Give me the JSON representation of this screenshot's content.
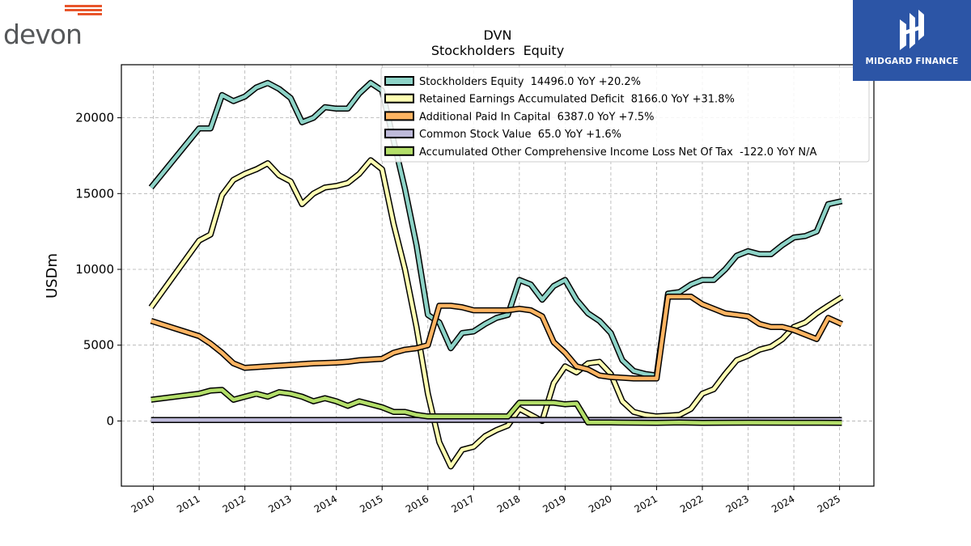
{
  "brands": {
    "left": "devon",
    "right": "MIDGARD FINANCE"
  },
  "colors": {
    "equity": "#8dd3c7",
    "retained": "#ffffb3",
    "apic": "#fdb462",
    "common": "#bebada",
    "aoci": "#b3de69",
    "devon_accent": "#e8552b",
    "midgard_bg": "#2c55a6"
  },
  "chart_data": {
    "type": "line",
    "title": "DVN",
    "subtitle": "Stockholders  Equity",
    "ylabel": "USDm",
    "xlabel": "",
    "xlim": [
      2009.3,
      2025.75
    ],
    "ylim": [
      -4300,
      23500
    ],
    "xticks": [
      "2010",
      "2011",
      "2012",
      "2013",
      "2014",
      "2015",
      "2016",
      "2017",
      "2018",
      "2019",
      "2020",
      "2021",
      "2022",
      "2023",
      "2024",
      "2025"
    ],
    "yticks": [
      "0",
      "5000",
      "10000",
      "15000",
      "20000"
    ],
    "grid": true,
    "legend_position": "top-right",
    "series": [
      {
        "key": "equity",
        "name": "Stockholders Equity  14496.0 YoY +20.2%",
        "color_key": "equity",
        "points": [
          [
            2009.95,
            15400
          ],
          [
            2011.0,
            19300
          ],
          [
            2011.25,
            19300
          ],
          [
            2011.5,
            21500
          ],
          [
            2011.75,
            21100
          ],
          [
            2012.0,
            21400
          ],
          [
            2012.25,
            22000
          ],
          [
            2012.5,
            22300
          ],
          [
            2012.75,
            21900
          ],
          [
            2013.0,
            21300
          ],
          [
            2013.25,
            19700
          ],
          [
            2013.5,
            20000
          ],
          [
            2013.75,
            20700
          ],
          [
            2014.0,
            20600
          ],
          [
            2014.25,
            20600
          ],
          [
            2014.5,
            21600
          ],
          [
            2014.75,
            22300
          ],
          [
            2015.0,
            21800
          ],
          [
            2015.25,
            18500
          ],
          [
            2015.5,
            15300
          ],
          [
            2015.75,
            11600
          ],
          [
            2016.0,
            7000
          ],
          [
            2016.25,
            6500
          ],
          [
            2016.5,
            4800
          ],
          [
            2016.75,
            5800
          ],
          [
            2017.0,
            5900
          ],
          [
            2017.25,
            6400
          ],
          [
            2017.5,
            6800
          ],
          [
            2017.75,
            7000
          ],
          [
            2018.0,
            9300
          ],
          [
            2018.25,
            9000
          ],
          [
            2018.5,
            8000
          ],
          [
            2018.75,
            8900
          ],
          [
            2019.0,
            9300
          ],
          [
            2019.25,
            8000
          ],
          [
            2019.5,
            7100
          ],
          [
            2019.75,
            6600
          ],
          [
            2020.0,
            5800
          ],
          [
            2020.25,
            4000
          ],
          [
            2020.5,
            3300
          ],
          [
            2020.75,
            3100
          ],
          [
            2021.0,
            3000
          ],
          [
            2021.25,
            8400
          ],
          [
            2021.5,
            8500
          ],
          [
            2021.75,
            9000
          ],
          [
            2022.0,
            9300
          ],
          [
            2022.25,
            9300
          ],
          [
            2022.5,
            10000
          ],
          [
            2022.75,
            10900
          ],
          [
            2023.0,
            11200
          ],
          [
            2023.25,
            11000
          ],
          [
            2023.5,
            11000
          ],
          [
            2023.75,
            11600
          ],
          [
            2024.0,
            12100
          ],
          [
            2024.25,
            12200
          ],
          [
            2024.5,
            12500
          ],
          [
            2024.75,
            14300
          ],
          [
            2025.05,
            14496
          ]
        ]
      },
      {
        "key": "retained",
        "name": "Retained Earnings Accumulated Deficit  8166.0 YoY +31.8%",
        "color_key": "retained",
        "points": [
          [
            2009.95,
            7500
          ],
          [
            2011.0,
            11900
          ],
          [
            2011.25,
            12300
          ],
          [
            2011.5,
            14900
          ],
          [
            2011.75,
            15900
          ],
          [
            2012.0,
            16300
          ],
          [
            2012.25,
            16600
          ],
          [
            2012.5,
            17000
          ],
          [
            2012.75,
            16200
          ],
          [
            2013.0,
            15800
          ],
          [
            2013.25,
            14300
          ],
          [
            2013.5,
            15000
          ],
          [
            2013.75,
            15400
          ],
          [
            2014.0,
            15500
          ],
          [
            2014.25,
            15700
          ],
          [
            2014.5,
            16300
          ],
          [
            2014.75,
            17200
          ],
          [
            2015.0,
            16600
          ],
          [
            2015.25,
            13000
          ],
          [
            2015.5,
            10000
          ],
          [
            2015.75,
            6200
          ],
          [
            2016.0,
            1800
          ],
          [
            2016.25,
            -1400
          ],
          [
            2016.5,
            -3000
          ],
          [
            2016.75,
            -1900
          ],
          [
            2017.0,
            -1700
          ],
          [
            2017.25,
            -1000
          ],
          [
            2017.5,
            -600
          ],
          [
            2017.75,
            -300
          ],
          [
            2018.0,
            800
          ],
          [
            2018.25,
            400
          ],
          [
            2018.5,
            0
          ],
          [
            2018.75,
            2500
          ],
          [
            2019.0,
            3600
          ],
          [
            2019.25,
            3200
          ],
          [
            2019.5,
            3800
          ],
          [
            2019.75,
            3900
          ],
          [
            2020.0,
            3100
          ],
          [
            2020.25,
            1300
          ],
          [
            2020.5,
            600
          ],
          [
            2020.75,
            400
          ],
          [
            2021.0,
            300
          ],
          [
            2021.25,
            350
          ],
          [
            2021.5,
            400
          ],
          [
            2021.75,
            800
          ],
          [
            2022.0,
            1800
          ],
          [
            2022.25,
            2100
          ],
          [
            2022.5,
            3100
          ],
          [
            2022.75,
            4000
          ],
          [
            2023.0,
            4300
          ],
          [
            2023.25,
            4700
          ],
          [
            2023.5,
            4900
          ],
          [
            2023.75,
            5400
          ],
          [
            2024.0,
            6200
          ],
          [
            2024.25,
            6500
          ],
          [
            2024.5,
            7100
          ],
          [
            2024.75,
            7600
          ],
          [
            2025.05,
            8166
          ]
        ]
      },
      {
        "key": "apic",
        "name": "Additional Paid In Capital  6387.0 YoY +7.5%",
        "color_key": "apic",
        "points": [
          [
            2009.95,
            6600
          ],
          [
            2011.0,
            5600
          ],
          [
            2011.25,
            5100
          ],
          [
            2011.5,
            4500
          ],
          [
            2011.75,
            3800
          ],
          [
            2012.0,
            3500
          ],
          [
            2012.5,
            3600
          ],
          [
            2013.0,
            3700
          ],
          [
            2013.5,
            3800
          ],
          [
            2014.0,
            3850
          ],
          [
            2014.25,
            3900
          ],
          [
            2014.5,
            4000
          ],
          [
            2015.0,
            4100
          ],
          [
            2015.25,
            4500
          ],
          [
            2015.5,
            4700
          ],
          [
            2015.75,
            4800
          ],
          [
            2016.0,
            5000
          ],
          [
            2016.25,
            7600
          ],
          [
            2016.5,
            7600
          ],
          [
            2016.75,
            7500
          ],
          [
            2017.0,
            7300
          ],
          [
            2017.5,
            7300
          ],
          [
            2017.75,
            7300
          ],
          [
            2018.0,
            7400
          ],
          [
            2018.25,
            7300
          ],
          [
            2018.5,
            6900
          ],
          [
            2018.75,
            5200
          ],
          [
            2019.0,
            4500
          ],
          [
            2019.25,
            3600
          ],
          [
            2019.5,
            3400
          ],
          [
            2019.75,
            3000
          ],
          [
            2020.0,
            2900
          ],
          [
            2020.5,
            2800
          ],
          [
            2021.0,
            2800
          ],
          [
            2021.25,
            8200
          ],
          [
            2021.5,
            8200
          ],
          [
            2021.75,
            8200
          ],
          [
            2022.0,
            7700
          ],
          [
            2022.25,
            7400
          ],
          [
            2022.5,
            7100
          ],
          [
            2022.75,
            7000
          ],
          [
            2023.0,
            6900
          ],
          [
            2023.25,
            6400
          ],
          [
            2023.5,
            6200
          ],
          [
            2023.75,
            6200
          ],
          [
            2024.0,
            6000
          ],
          [
            2024.25,
            5700
          ],
          [
            2024.5,
            5400
          ],
          [
            2024.75,
            6800
          ],
          [
            2025.05,
            6387
          ]
        ]
      },
      {
        "key": "common",
        "name": "Common Stock Value  65.0 YoY +1.6%",
        "color_key": "common",
        "points": [
          [
            2009.95,
            60
          ],
          [
            2012.0,
            60
          ],
          [
            2016.0,
            70
          ],
          [
            2020.0,
            70
          ],
          [
            2022.0,
            65
          ],
          [
            2025.05,
            65
          ]
        ]
      },
      {
        "key": "aoci",
        "name": "Accumulated Other Comprehensive Income Loss Net Of Tax  -122.0 YoY N/A",
        "color_key": "aoci",
        "points": [
          [
            2009.95,
            1400
          ],
          [
            2011.0,
            1800
          ],
          [
            2011.25,
            2000
          ],
          [
            2011.5,
            2050
          ],
          [
            2011.75,
            1400
          ],
          [
            2012.0,
            1600
          ],
          [
            2012.25,
            1800
          ],
          [
            2012.5,
            1600
          ],
          [
            2012.75,
            1900
          ],
          [
            2013.0,
            1800
          ],
          [
            2013.25,
            1600
          ],
          [
            2013.5,
            1300
          ],
          [
            2013.75,
            1500
          ],
          [
            2014.0,
            1300
          ],
          [
            2014.25,
            1000
          ],
          [
            2014.5,
            1300
          ],
          [
            2014.75,
            1100
          ],
          [
            2015.0,
            900
          ],
          [
            2015.25,
            600
          ],
          [
            2015.5,
            600
          ],
          [
            2015.75,
            400
          ],
          [
            2016.0,
            300
          ],
          [
            2017.0,
            300
          ],
          [
            2017.75,
            300
          ],
          [
            2018.0,
            1200
          ],
          [
            2018.5,
            1200
          ],
          [
            2018.75,
            1200
          ],
          [
            2019.0,
            1100
          ],
          [
            2019.25,
            1150
          ],
          [
            2019.5,
            -100
          ],
          [
            2020.0,
            -100
          ],
          [
            2021.0,
            -120
          ],
          [
            2021.5,
            -100
          ],
          [
            2022.0,
            -120
          ],
          [
            2023.0,
            -110
          ],
          [
            2024.0,
            -115
          ],
          [
            2025.05,
            -122
          ]
        ]
      }
    ]
  }
}
